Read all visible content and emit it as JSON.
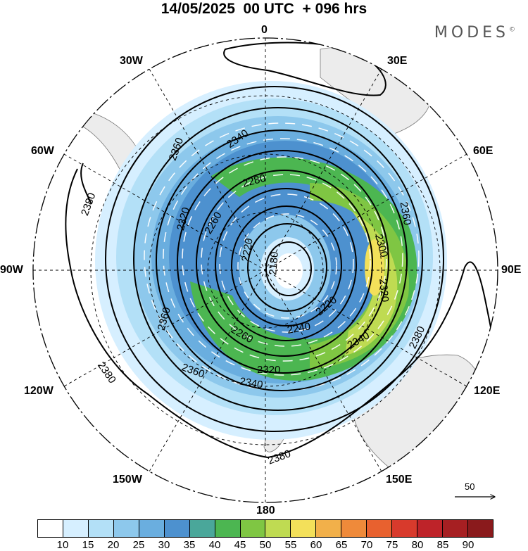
{
  "header": {
    "title": "14/05/2025  00 UTC  + 096 hrs",
    "brand": "MODES",
    "brand_mark": "©"
  },
  "map": {
    "projection": "polar stereographic (Southern Hemisphere)",
    "longitude_labels": {
      "top": "0",
      "top_left": "30W",
      "top_right": "30E",
      "upper_left": "60W",
      "upper_right": "60E",
      "left": "90W",
      "right": "90E",
      "lower_left": "120W",
      "lower_right": "120E",
      "bottom_left": "150W",
      "bottom_right": "150E",
      "bottom": "180"
    },
    "contour_labels": [
      "2380",
      "2360",
      "2340",
      "2320",
      "2300",
      "2280",
      "2260",
      "2240",
      "2220",
      "2180"
    ],
    "contour_values": [
      2180,
      2220,
      2240,
      2260,
      2280,
      2300,
      2320,
      2340,
      2360,
      2380
    ],
    "vector_reference": {
      "label": "50"
    }
  },
  "colorbar": {
    "levels": [
      "10",
      "15",
      "20",
      "25",
      "30",
      "35",
      "40",
      "45",
      "50",
      "55",
      "60",
      "65",
      "70",
      "75",
      "80",
      "85",
      "90"
    ],
    "colors": [
      "#ffffff",
      "#d6efff",
      "#b3e0f7",
      "#8dc8ec",
      "#6aaedf",
      "#4d91cf",
      "#4aa79a",
      "#4cb651",
      "#7fc643",
      "#bfdb52",
      "#f3e05a",
      "#f2b04a",
      "#ef8a3a",
      "#e8612f",
      "#d83a2c",
      "#be2329",
      "#a61f22",
      "#8a1a1c"
    ]
  }
}
